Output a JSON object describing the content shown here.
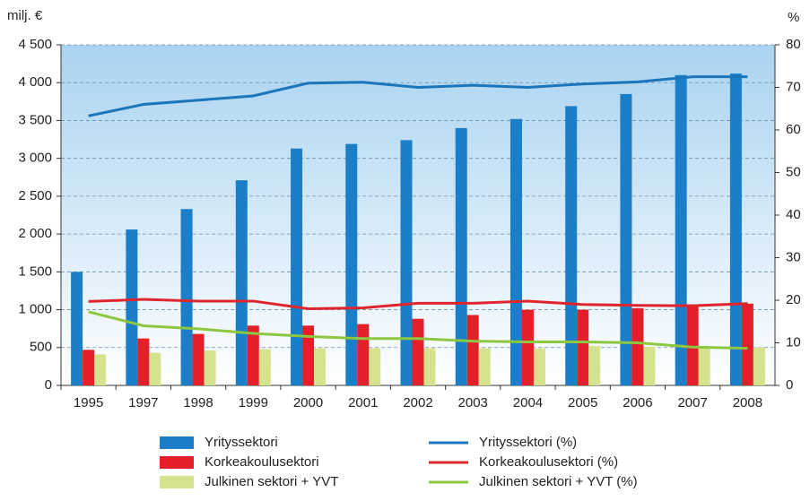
{
  "chart_data": {
    "type": "bar",
    "y_label": "milj. €",
    "y2_label": "%",
    "categories": [
      "1995",
      "1997",
      "1998",
      "1999",
      "2000",
      "2001",
      "2002",
      "2003",
      "2004",
      "2005",
      "2006",
      "2007",
      "2008"
    ],
    "series": [
      {
        "name": "Yrityssektori",
        "type": "bar",
        "color": "#1a7fc8",
        "values": [
          1500,
          2060,
          2330,
          2710,
          3130,
          3190,
          3240,
          3400,
          3520,
          3690,
          3850,
          4100,
          4120
        ]
      },
      {
        "name": "Korkeakoulusektori",
        "type": "bar",
        "color": "#e3202a",
        "values": [
          470,
          620,
          680,
          790,
          790,
          810,
          880,
          930,
          1000,
          1000,
          1020,
          1070,
          1080
        ]
      },
      {
        "name": "Julkinen sektori + YVT",
        "type": "bar",
        "color": "#d5e28e",
        "values": [
          410,
          430,
          460,
          480,
          490,
          490,
          490,
          490,
          490,
          520,
          510,
          500,
          500
        ]
      },
      {
        "name": "Yrityssektori (%)",
        "type": "line",
        "axis": "y2",
        "color": "#1b75bb",
        "values": [
          63.3,
          66,
          67,
          68,
          71,
          71.2,
          70,
          70.5,
          70,
          70.8,
          71.3,
          72.5,
          72.5
        ]
      },
      {
        "name": "Korkeakoulusektori (%)",
        "type": "line",
        "axis": "y2",
        "color": "#e0262d",
        "values": [
          19.7,
          20.2,
          19.8,
          19.8,
          18,
          18.2,
          19.3,
          19.3,
          19.8,
          19,
          18.8,
          18.7,
          19.2
        ]
      },
      {
        "name": "Julkinen sektori + YVT (%)",
        "type": "line",
        "axis": "y2",
        "color": "#8dc63f",
        "values": [
          17.3,
          14,
          13.3,
          12.2,
          11.5,
          11,
          11,
          10.4,
          10.2,
          10.2,
          10,
          9,
          8.7
        ]
      }
    ],
    "ylim": [
      0,
      4500
    ],
    "yticks": [
      0,
      500,
      {
        "value": 1000,
        "label": "1 000"
      },
      {
        "value": 1500,
        "label": "1 500"
      },
      {
        "value": 2000,
        "label": "2 000"
      },
      {
        "value": 2500,
        "label": "2 500"
      },
      {
        "value": 3000,
        "label": "3 000"
      },
      {
        "value": 3500,
        "label": "3 500"
      },
      {
        "value": 4000,
        "label": "4 000"
      },
      {
        "value": 4500,
        "label": "4 500"
      }
    ],
    "y2lim": [
      0,
      80
    ],
    "y2ticks": [
      0,
      10,
      20,
      30,
      40,
      50,
      60,
      70,
      80
    ],
    "grid": true
  }
}
